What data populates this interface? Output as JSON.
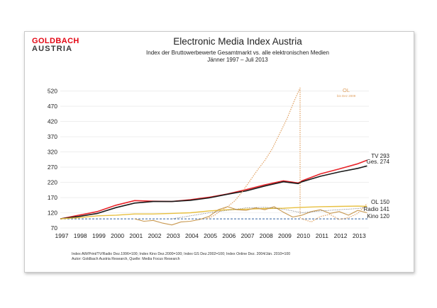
{
  "logo": {
    "line1": "GOLDBACH",
    "line2": "AUSTRIA"
  },
  "header": {
    "title": "Electronic Media Index Austria",
    "subtitle": "Index der Bruttowerbewerte Gesamtmarkt vs. alle elektronischen Medien",
    "period": "Jänner 1997 – Juli 2013"
  },
  "footer": {
    "line1": "Index AW/Print/TV/Radio Dez.1996=100; Index Kino Dez.2000=100; Index GS Dez.2002=100; Index Online Dez. 2004/Jän. 2010=100",
    "line2": "Autor: Goldbach Austria Research, Quelle: Media Focus Research"
  },
  "colors": {
    "tv": "#e8242a",
    "ges": "#1a1a1a",
    "ol": "#e0a060",
    "radio": "#e8c040",
    "kino": "#c89850",
    "baseline": "#3060a0"
  },
  "chart_data": {
    "type": "line",
    "ylim": [
      70,
      540
    ],
    "yticks": [
      70,
      120,
      170,
      220,
      270,
      320,
      370,
      420,
      470,
      520
    ],
    "xlim": [
      1997,
      2013.6
    ],
    "xticks": [
      "1997",
      "1998",
      "1999",
      "2000",
      "2001",
      "2002",
      "2003",
      "2004",
      "2005",
      "2006",
      "2007",
      "2008",
      "2009",
      "2010",
      "2011",
      "2012",
      "2013"
    ],
    "baseline": 100,
    "ol_note": {
      "title": "OL",
      "sub": "bis Dez 2009"
    },
    "series": [
      {
        "key": "tv",
        "name": "TV",
        "end_label": "293",
        "x": [
          1997,
          1998,
          1999,
          2000,
          2001,
          2002,
          2003,
          2004,
          2005,
          2006,
          2007,
          2008,
          2009,
          2009.8,
          2010,
          2011,
          2012,
          2013,
          2013.5
        ],
        "y": [
          100,
          112,
          124,
          145,
          160,
          158,
          157,
          163,
          171,
          182,
          196,
          212,
          225,
          218,
          225,
          248,
          264,
          281,
          293
        ]
      },
      {
        "key": "ges",
        "name": "Ges.",
        "end_label": "274",
        "x": [
          1997,
          1998,
          1999,
          2000,
          2001,
          2002,
          2003,
          2004,
          2005,
          2006,
          2007,
          2008,
          2009,
          2009.8,
          2010,
          2011,
          2012,
          2013,
          2013.5
        ],
        "y": [
          100,
          108,
          118,
          137,
          152,
          157,
          157,
          161,
          169,
          181,
          192,
          208,
          222,
          216,
          222,
          240,
          254,
          266,
          274
        ]
      },
      {
        "key": "ol",
        "name": "OL",
        "end_label": "150",
        "x": [
          2004.9,
          2005.3,
          2005.6,
          2006,
          2006.4,
          2006.8,
          2007.2,
          2007.6,
          2008,
          2008.4,
          2008.8,
          2009.2,
          2009.6,
          2009.9,
          2009.9,
          2010,
          2010.5,
          2011,
          2011.5,
          2012,
          2012.5,
          2013,
          2013.5
        ],
        "y": [
          100,
          112,
          126,
          140,
          160,
          190,
          225,
          260,
          292,
          330,
          380,
          430,
          490,
          530,
          105,
          100,
          90,
          108,
          115,
          98,
          104,
          118,
          150
        ]
      },
      {
        "key": "radio",
        "name": "Radio",
        "end_label": "141",
        "x": [
          1997,
          1998,
          1999,
          2000,
          2001,
          2002,
          2003,
          2004,
          2005,
          2006,
          2007,
          2008,
          2009,
          2010,
          2011,
          2012,
          2013,
          2013.5
        ],
        "y": [
          100,
          104,
          110,
          112,
          116,
          116,
          118,
          120,
          126,
          130,
          132,
          134,
          135,
          138,
          140,
          141,
          142,
          141
        ]
      },
      {
        "key": "kino",
        "name": "Kino",
        "end_label": "120",
        "x": [
          2001,
          2001.5,
          2002,
          2002.5,
          2003,
          2003.5,
          2004,
          2004.5,
          2005,
          2005.5,
          2006,
          2006.5,
          2007,
          2007.5,
          2008,
          2008.5,
          2009,
          2009.5,
          2010,
          2010.5,
          2011,
          2011.5,
          2012,
          2012.5,
          2013,
          2013.5
        ],
        "y": [
          100,
          92,
          95,
          86,
          80,
          90,
          92,
          98,
          108,
          130,
          140,
          130,
          128,
          136,
          130,
          140,
          122,
          106,
          112,
          124,
          130,
          118,
          124,
          112,
          128,
          120
        ]
      },
      {
        "key": "gs",
        "name": "",
        "x": [
          2003,
          2004,
          2005,
          2006,
          2007,
          2008,
          2009,
          2010,
          2011,
          2012,
          2013,
          2013.5
        ],
        "y": [
          100,
          110,
          120,
          128,
          136,
          138,
          132,
          120,
          126,
          130,
          134,
          138
        ]
      }
    ]
  }
}
